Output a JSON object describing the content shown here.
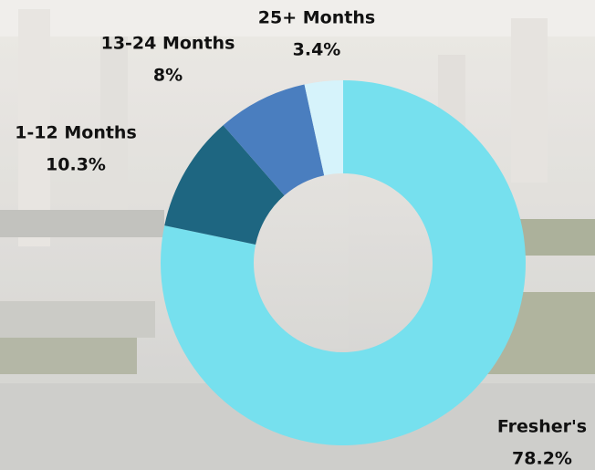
{
  "chart_data": {
    "type": "pie",
    "categories": [
      "Fresher's",
      "1-12 Months",
      "13-24 Months",
      "25+ Months"
    ],
    "values": [
      78.2,
      10.3,
      8,
      3.4
    ],
    "value_labels": [
      "78.2%",
      "10.3%",
      "8%",
      "3.4%"
    ],
    "colors": [
      "#76e0ee",
      "#1e6681",
      "#4a7ebf",
      "#d6f3fb"
    ],
    "donut": true
  }
}
